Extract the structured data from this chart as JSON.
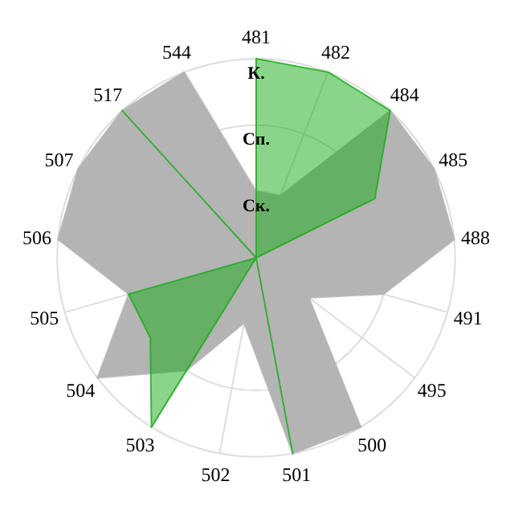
{
  "chart_data": {
    "type": "radar",
    "categories": [
      "481",
      "482",
      "484",
      "485",
      "488",
      "491",
      "495",
      "500",
      "501",
      "502",
      "503",
      "504",
      "505",
      "506",
      "507",
      "517",
      "544"
    ],
    "ylim": [
      0,
      3
    ],
    "yticks": [
      {
        "value": 1,
        "label": "Ск."
      },
      {
        "value": 2,
        "label": "Сп."
      },
      {
        "value": 3,
        "label": "К."
      }
    ],
    "grid": true,
    "series": [
      {
        "color": "#b4b4b4",
        "values": [
          1,
          1,
          3,
          3,
          3,
          2,
          1,
          3,
          3,
          1,
          2,
          3,
          2,
          3,
          3,
          3,
          3
        ]
      },
      {
        "color": "#18ac18",
        "values": [
          3,
          3,
          3,
          2,
          0,
          0,
          0,
          0,
          3,
          0,
          3,
          2,
          2,
          0,
          0,
          3,
          0
        ]
      }
    ]
  }
}
